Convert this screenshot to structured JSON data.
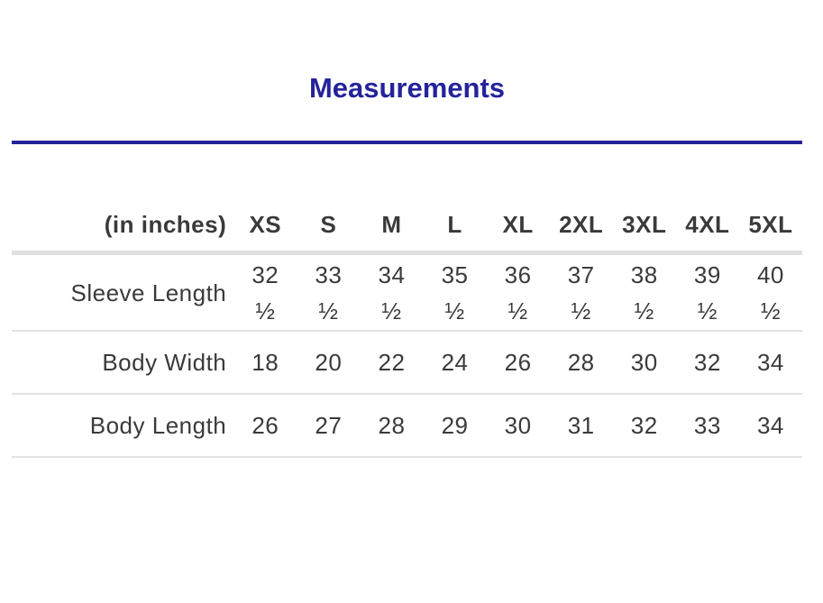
{
  "title": "Measurements",
  "table": {
    "unit_label": "(in inches)",
    "sizes": [
      "XS",
      "S",
      "M",
      "L",
      "XL",
      "2XL",
      "3XL",
      "4XL",
      "5XL"
    ],
    "rows": [
      {
        "label": "Sleeve Length",
        "values": [
          "32 ½",
          "33 ½",
          "34 ½",
          "35 ½",
          "36 ½",
          "37 ½",
          "38 ½",
          "39 ½",
          "40 ½"
        ]
      },
      {
        "label": "Body Width",
        "values": [
          "18",
          "20",
          "22",
          "24",
          "26",
          "28",
          "30",
          "32",
          "34"
        ]
      },
      {
        "label": "Body Length",
        "values": [
          "26",
          "27",
          "28",
          "29",
          "30",
          "31",
          "32",
          "33",
          "34"
        ]
      }
    ]
  },
  "colors": {
    "accent": "#25239a",
    "text": "#3a3a3a",
    "divider": "#e3e3e3"
  }
}
